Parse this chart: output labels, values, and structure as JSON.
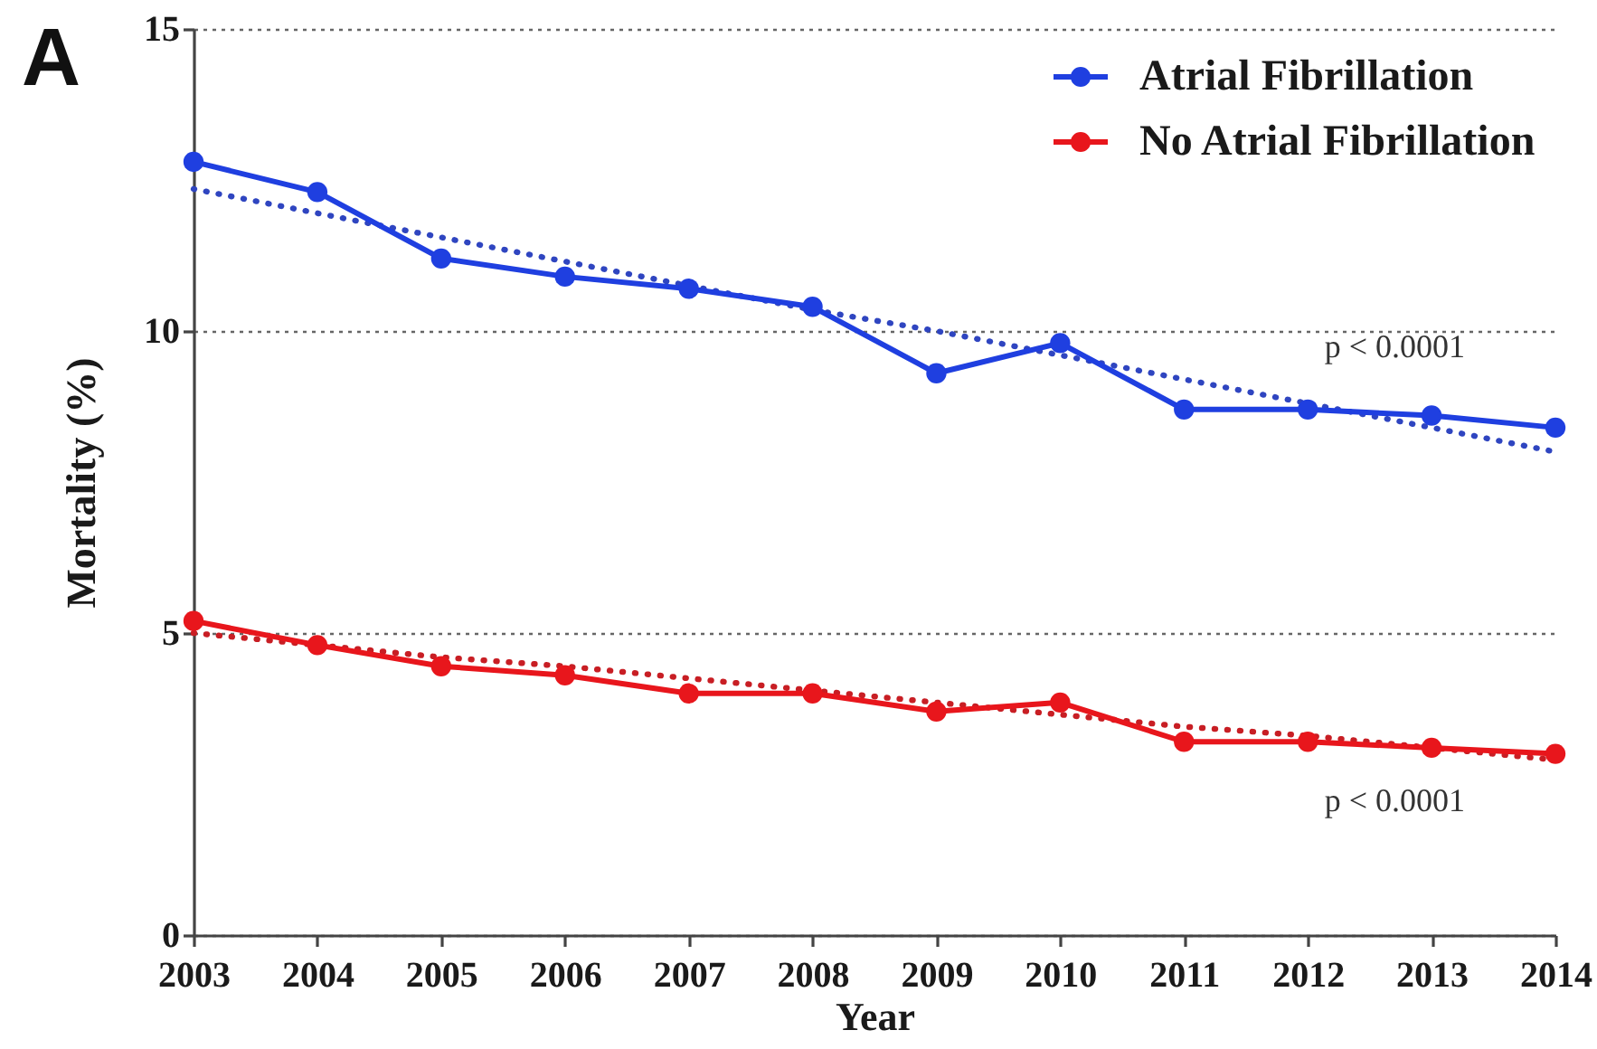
{
  "chart_data": {
    "type": "line",
    "title": "A",
    "xlabel": "Year",
    "ylabel": "Mortality (%)",
    "xlim": [
      2003,
      2014
    ],
    "xticks": [
      2003,
      2004,
      2005,
      2006,
      2007,
      2008,
      2009,
      2010,
      2011,
      2012,
      2013,
      2014
    ],
    "ylim": [
      0,
      15
    ],
    "yticks": [
      0,
      5,
      10,
      15
    ],
    "x": [
      2003,
      2004,
      2005,
      2006,
      2007,
      2008,
      2009,
      2010,
      2011,
      2012,
      2013,
      2014
    ],
    "series": [
      {
        "name": "Atrial Fibrillation",
        "color": "#1f3fe0",
        "values": [
          12.8,
          12.3,
          11.2,
          10.9,
          10.7,
          10.4,
          9.3,
          9.8,
          8.7,
          8.7,
          8.6,
          8.4
        ]
      },
      {
        "name": "No Atrial Fibrillation",
        "color": "#e8161c",
        "values": [
          5.2,
          4.8,
          4.45,
          4.3,
          4.0,
          4.0,
          3.7,
          3.85,
          3.2,
          3.2,
          3.1,
          3.0
        ]
      },
      {
        "color": "#2f45c0",
        "values": [
          12.35,
          11.95,
          11.55,
          11.15,
          10.75,
          10.35,
          10.0,
          9.6,
          9.2,
          8.8,
          8.4,
          8.0
        ],
        "marker": "none",
        "line_style": "dotted"
      },
      {
        "color": "#c81e24",
        "values": [
          5.0,
          4.8,
          4.6,
          4.45,
          4.25,
          4.05,
          3.85,
          3.65,
          3.45,
          3.3,
          3.1,
          2.9
        ],
        "marker": "none",
        "line_style": "dotted"
      }
    ],
    "annotations": [
      "p < 0.0001",
      "p < 0.0001"
    ],
    "grid": "y",
    "legend": "top right",
    "marker": "circle",
    "line_style": "solid"
  }
}
